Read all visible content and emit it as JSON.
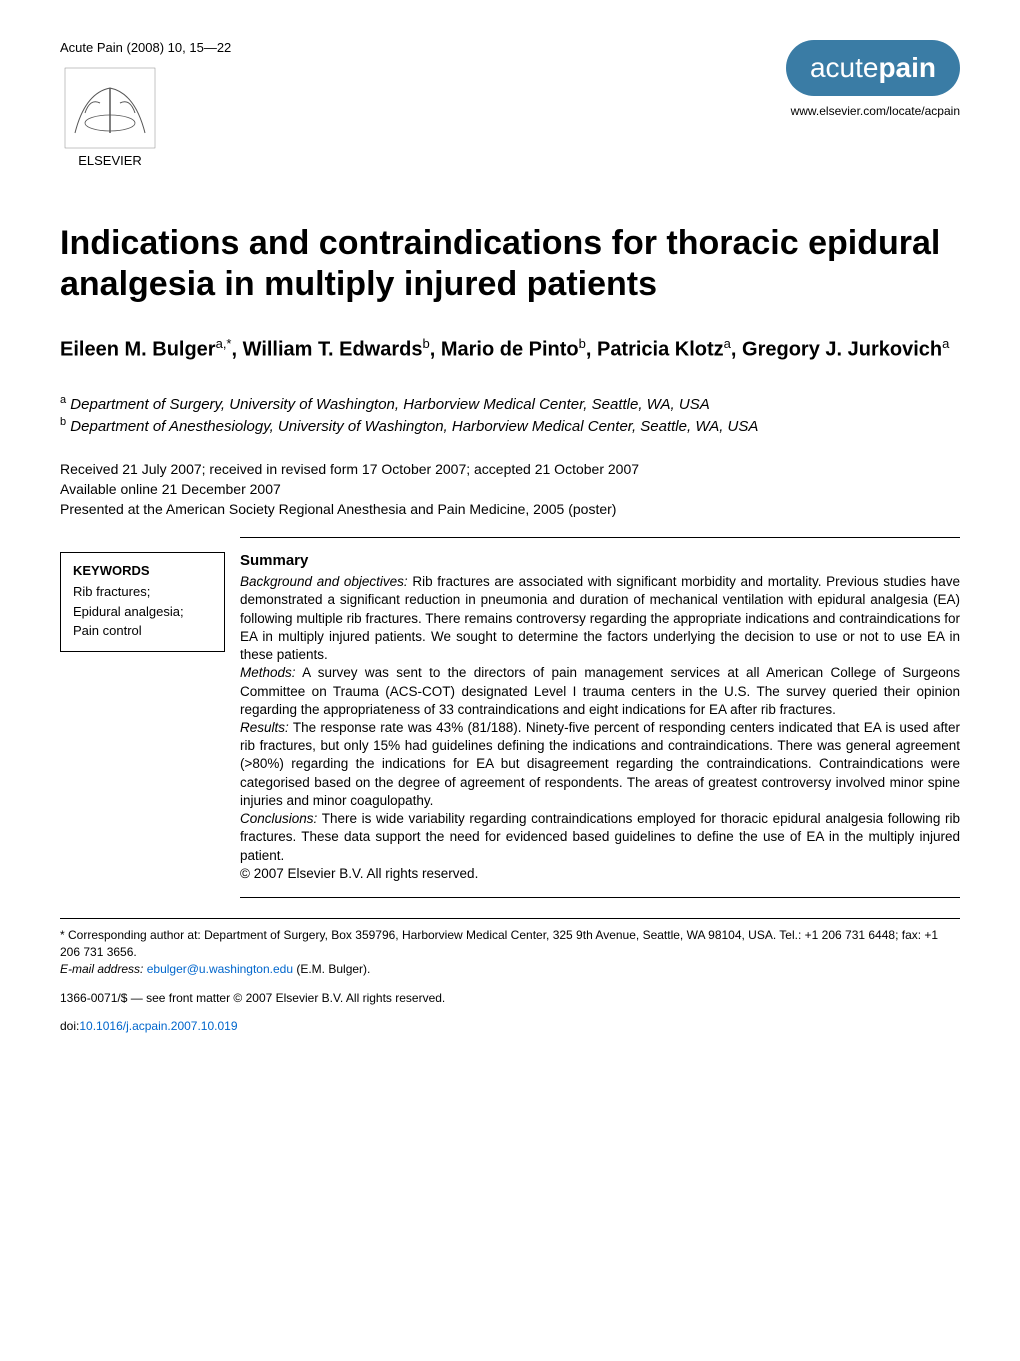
{
  "journal_ref": "Acute Pain (2008) 10, 15—22",
  "publisher_name": "ELSEVIER",
  "journal_logo": {
    "light": "acute",
    "bold": "pain",
    "bg_color": "#3a7ca5"
  },
  "journal_url": "www.elsevier.com/locate/acpain",
  "title": "Indications and contraindications for thoracic epidural analgesia in multiply injured patients",
  "authors_html": "Eileen M. Bulger<sup>a,*</sup>, William T. Edwards<sup>b</sup>, Mario de Pinto<sup>b</sup>, Patricia Klotz<sup>a</sup>, Gregory J. Jurkovich<sup>a</sup>",
  "affiliations": [
    {
      "label": "a",
      "text": "Department of Surgery, University of Washington, Harborview Medical Center, Seattle, WA, USA"
    },
    {
      "label": "b",
      "text": "Department of Anesthesiology, University of Washington, Harborview Medical Center, Seattle, WA, USA"
    }
  ],
  "received_line": "Received 21 July 2007; received in revised form 17 October 2007; accepted 21 October 2007",
  "available_line": "Available online 21 December 2007",
  "presented_line": "Presented at the American Society Regional Anesthesia and Pain Medicine, 2005 (poster)",
  "keywords_heading": "KEYWORDS",
  "keywords": "Rib fractures;\nEpidural analgesia;\nPain control",
  "summary_heading": "Summary",
  "summary": {
    "background_label": "Background and objectives:",
    "background": " Rib fractures are associated with significant morbidity and mortality. Previous studies have demonstrated a significant reduction in pneumonia and duration of mechanical ventilation with epidural analgesia (EA) following multiple rib fractures. There remains controversy regarding the appropriate indications and contraindications for EA in multiply injured patients. We sought to determine the factors underlying the decision to use or not to use EA in these patients.",
    "methods_label": "Methods:",
    "methods": " A survey was sent to the directors of pain management services at all American College of Surgeons Committee on Trauma (ACS-COT) designated Level I trauma centers in the U.S. The survey queried their opinion regarding the appropriateness of 33 contraindications and eight indications for EA after rib fractures.",
    "results_label": "Results:",
    "results": " The response rate was 43% (81/188). Ninety-five percent of responding centers indicated that EA is used after rib fractures, but only 15% had guidelines defining the indications and contraindications. There was general agreement (>80%) regarding the indications for EA but disagreement regarding the contraindications. Contraindications were categorised based on the degree of agreement of respondents. The areas of greatest controversy involved minor spine injuries and minor coagulopathy.",
    "conclusions_label": "Conclusions:",
    "conclusions": " There is wide variability regarding contraindications employed for thoracic epidural analgesia following rib fractures. These data support the need for evidenced based guidelines to define the use of EA in the multiply injured patient.",
    "copyright": "© 2007 Elsevier B.V. All rights reserved."
  },
  "corresponding": "* Corresponding author at: Department of Surgery, Box 359796, Harborview Medical Center, 325 9th Avenue, Seattle, WA 98104, USA. Tel.: +1 206 731 6448; fax: +1 206 731 3656.",
  "email_label": "E-mail address:",
  "email": "ebulger@u.washington.edu",
  "email_suffix": " (E.M. Bulger).",
  "issn_line": "1366-0071/$ — see front matter © 2007 Elsevier B.V. All rights reserved.",
  "doi_label": "doi:",
  "doi": "10.1016/j.acpain.2007.10.019"
}
